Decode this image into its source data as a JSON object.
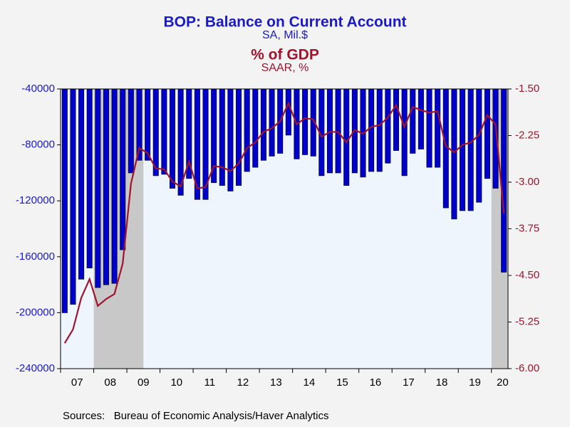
{
  "chart_data": {
    "type": "bar_line",
    "title": "BOP: Balance on Current Account",
    "subtitle": "SA, Mil.$",
    "title2": "% of GDP",
    "subtitle2": "SAAR, %",
    "source": "Sources:   Bureau of Economic Analysis/Haver Analytics",
    "x_labels": [
      "07",
      "08",
      "09",
      "10",
      "11",
      "12",
      "13",
      "14",
      "15",
      "16",
      "17",
      "18",
      "19",
      "20"
    ],
    "recessions": [
      [
        4,
        9
      ],
      [
        52,
        53
      ]
    ],
    "series": [
      {
        "name": "BOP: Balance on Current Account",
        "color": "#0000cc",
        "type": "bar",
        "values": [
          -200000,
          -194000,
          -176000,
          -168000,
          -182000,
          -180000,
          -179000,
          -155000,
          -100000,
          -91000,
          -91000,
          -102000,
          -101000,
          -111000,
          -116000,
          -104000,
          -119000,
          -119000,
          -107000,
          -109000,
          -113000,
          -109000,
          -99000,
          -96000,
          -91000,
          -88000,
          -86000,
          -73000,
          -90000,
          -87000,
          -88000,
          -102000,
          -100000,
          -100000,
          -109000,
          -100000,
          -103000,
          -99000,
          -99000,
          -93000,
          -84000,
          -102000,
          -86000,
          -83000,
          -96000,
          -96000,
          -125000,
          -133000,
          -127000,
          -127000,
          -121000,
          -104000,
          -111000,
          -171000
        ]
      },
      {
        "name": "% of GDP",
        "color": "#a0142e",
        "type": "line",
        "axis": "y2",
        "values": [
          -5.59,
          -5.37,
          -4.86,
          -4.56,
          -4.99,
          -4.88,
          -4.8,
          -4.31,
          -3.02,
          -2.45,
          -2.53,
          -2.78,
          -2.79,
          -2.99,
          -3.07,
          -2.67,
          -3.1,
          -3.08,
          -2.74,
          -2.76,
          -2.82,
          -2.7,
          -2.45,
          -2.36,
          -2.19,
          -2.13,
          -2.02,
          -1.73,
          -2.07,
          -1.97,
          -1.99,
          -2.27,
          -2.19,
          -2.19,
          -2.36,
          -2.16,
          -2.22,
          -2.11,
          -2.08,
          -1.96,
          -1.76,
          -2.11,
          -1.79,
          -1.84,
          -1.88,
          -1.86,
          -2.42,
          -2.52,
          -2.4,
          -2.36,
          -2.24,
          -1.92,
          -2.07,
          -3.5
        ]
      }
    ],
    "ylim": [
      -240000,
      -40000
    ],
    "yticks": [
      -240000,
      -200000,
      -160000,
      -120000,
      -80000,
      -40000
    ],
    "y2lim": [
      -6.0,
      -1.5
    ],
    "y2ticks": [
      {
        "value": -6.0,
        "label": "-6.00"
      },
      {
        "value": -5.25,
        "label": "-5.25"
      },
      {
        "value": -4.5,
        "label": "-4.50"
      },
      {
        "value": -3.75,
        "label": "-3.75"
      },
      {
        "value": -3.0,
        "label": "-3.00"
      },
      {
        "value": -2.25,
        "label": "-2.25"
      },
      {
        "value": -1.5,
        "label": "-1.50"
      }
    ]
  }
}
